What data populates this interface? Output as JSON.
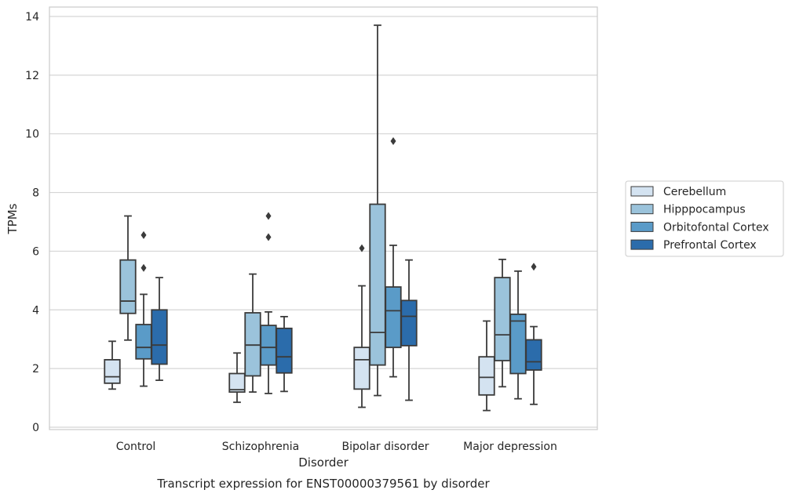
{
  "chart_data": {
    "type": "box",
    "caption": "Transcript expression for ENST00000379561 by disorder",
    "xlabel": "Disorder",
    "ylabel": "TPMs",
    "ylim": [
      -0.1,
      14.3
    ],
    "yticks": [
      0,
      2,
      4,
      6,
      8,
      10,
      12,
      14
    ],
    "grid": true,
    "legend_position": "right",
    "categories": [
      "Control",
      "Schizophrenia",
      "Bipolar disorder",
      "Major depression"
    ],
    "series": [
      {
        "name": "Cerebellum",
        "color": "#d4e3f1",
        "boxes": [
          {
            "whisker_low": 1.3,
            "q1": 1.5,
            "median": 1.72,
            "q3": 2.3,
            "whisker_high": 2.93,
            "outliers": []
          },
          {
            "whisker_low": 0.85,
            "q1": 1.2,
            "median": 1.28,
            "q3": 1.83,
            "whisker_high": 2.53,
            "outliers": []
          },
          {
            "whisker_low": 0.68,
            "q1": 1.3,
            "median": 2.3,
            "q3": 2.72,
            "whisker_high": 4.82,
            "outliers": [
              6.1
            ]
          },
          {
            "whisker_low": 0.57,
            "q1": 1.1,
            "median": 1.7,
            "q3": 2.4,
            "whisker_high": 3.62,
            "outliers": []
          }
        ]
      },
      {
        "name": "Hipppocampus",
        "color": "#9bc3db",
        "boxes": [
          {
            "whisker_low": 2.97,
            "q1": 3.88,
            "median": 4.3,
            "q3": 5.7,
            "whisker_high": 7.2,
            "outliers": []
          },
          {
            "whisker_low": 1.2,
            "q1": 1.75,
            "median": 2.8,
            "q3": 3.9,
            "whisker_high": 5.22,
            "outliers": []
          },
          {
            "whisker_low": 1.08,
            "q1": 2.12,
            "median": 3.23,
            "q3": 7.6,
            "whisker_high": 13.7,
            "outliers": []
          },
          {
            "whisker_low": 1.38,
            "q1": 2.27,
            "median": 3.15,
            "q3": 5.1,
            "whisker_high": 5.72,
            "outliers": []
          }
        ]
      },
      {
        "name": "Orbitofontal Cortex",
        "color": "#5a9bc8",
        "boxes": [
          {
            "whisker_low": 1.4,
            "q1": 2.33,
            "median": 2.72,
            "q3": 3.5,
            "whisker_high": 4.53,
            "outliers": [
              5.43,
              6.55
            ]
          },
          {
            "whisker_low": 1.15,
            "q1": 2.12,
            "median": 2.72,
            "q3": 3.47,
            "whisker_high": 3.93,
            "outliers": [
              6.48,
              7.2
            ]
          },
          {
            "whisker_low": 1.72,
            "q1": 2.72,
            "median": 3.97,
            "q3": 4.78,
            "whisker_high": 6.2,
            "outliers": [
              9.75
            ]
          },
          {
            "whisker_low": 0.97,
            "q1": 1.83,
            "median": 3.62,
            "q3": 3.85,
            "whisker_high": 5.32,
            "outliers": []
          }
        ]
      },
      {
        "name": "Prefrontal Cortex",
        "color": "#2b6cab",
        "boxes": [
          {
            "whisker_low": 1.6,
            "q1": 2.15,
            "median": 2.8,
            "q3": 4.0,
            "whisker_high": 5.1,
            "outliers": []
          },
          {
            "whisker_low": 1.22,
            "q1": 1.85,
            "median": 2.4,
            "q3": 3.37,
            "whisker_high": 3.77,
            "outliers": []
          },
          {
            "whisker_low": 0.92,
            "q1": 2.78,
            "median": 3.78,
            "q3": 4.32,
            "whisker_high": 5.7,
            "outliers": []
          },
          {
            "whisker_low": 0.78,
            "q1": 1.95,
            "median": 2.23,
            "q3": 2.98,
            "whisker_high": 3.43,
            "outliers": [
              5.47
            ]
          }
        ]
      }
    ]
  }
}
